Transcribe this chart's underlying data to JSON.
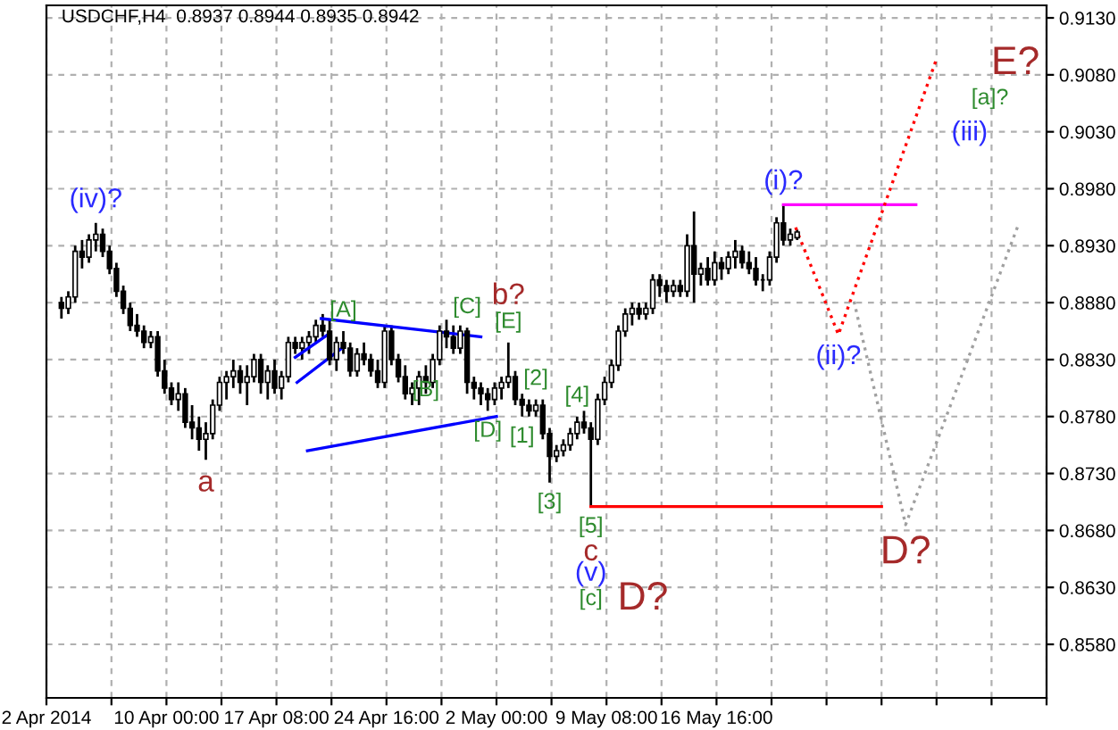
{
  "chart_data": {
    "type": "candlestick",
    "title": "USDCHF,H4  0.8937 0.8944 0.8935 0.8942",
    "color": "#000000",
    "x": [
      "2014-04-03T00:00",
      "2014-04-03T11:00",
      "2014-04-03T22:00",
      "2014-04-04T09:00",
      "2014-04-04T20:00",
      "2014-04-05T07:00",
      "2014-04-05T18:00",
      "2014-04-06T05:00",
      "2014-04-06T16:00",
      "2014-04-07T03:00",
      "2014-04-07T14:00",
      "2014-04-08T01:00",
      "2014-04-08T12:00",
      "2014-04-08T23:00",
      "2014-04-09T10:00",
      "2014-04-09T21:00",
      "2014-04-10T08:00",
      "2014-04-10T19:00",
      "2014-04-11T06:00",
      "2014-04-11T17:00",
      "2014-04-12T04:00",
      "2014-04-12T15:00",
      "2014-04-13T02:00",
      "2014-04-13T13:00",
      "2014-04-14T00:00",
      "2014-04-14T11:00",
      "2014-04-14T22:00",
      "2014-04-15T09:00",
      "2014-04-15T20:00",
      "2014-04-16T07:00",
      "2014-04-16T18:00",
      "2014-04-17T05:00",
      "2014-04-17T16:00",
      "2014-04-18T03:00",
      "2014-04-18T14:00",
      "2014-04-19T01:00",
      "2014-04-19T12:00",
      "2014-04-19T23:00",
      "2014-04-20T10:00",
      "2014-04-20T21:00",
      "2014-04-21T08:00",
      "2014-04-21T19:00",
      "2014-04-22T06:00",
      "2014-04-22T17:00",
      "2014-04-23T04:00",
      "2014-04-23T15:00",
      "2014-04-24T02:00",
      "2014-04-24T13:00",
      "2014-04-25T00:00",
      "2014-04-25T11:00",
      "2014-04-25T22:00",
      "2014-04-26T09:00",
      "2014-04-26T20:00",
      "2014-04-27T07:00",
      "2014-04-27T18:00",
      "2014-04-28T05:00",
      "2014-04-28T16:00",
      "2014-04-29T03:00",
      "2014-04-29T14:00",
      "2014-04-30T01:00",
      "2014-04-30T12:00",
      "2014-04-30T23:00",
      "2014-05-01T10:00",
      "2014-05-01T21:00",
      "2014-05-02T08:00",
      "2014-05-02T19:00",
      "2014-05-03T06:00",
      "2014-05-03T17:00",
      "2014-05-04T04:00",
      "2014-05-04T15:00",
      "2014-05-05T02:00",
      "2014-05-05T13:00",
      "2014-05-06T00:00",
      "2014-05-06T11:00",
      "2014-05-06T22:00",
      "2014-05-07T09:00",
      "2014-05-07T20:00",
      "2014-05-08T07:00",
      "2014-05-08T18:00",
      "2014-05-09T05:00",
      "2014-05-09T16:00",
      "2014-05-10T03:00",
      "2014-05-10T14:00",
      "2014-05-11T01:00",
      "2014-05-11T12:00",
      "2014-05-11T23:00",
      "2014-05-12T10:00",
      "2014-05-12T21:00",
      "2014-05-13T08:00",
      "2014-05-13T19:00",
      "2014-05-14T06:00",
      "2014-05-14T17:00",
      "2014-05-15T04:00",
      "2014-05-15T15:00",
      "2014-05-16T02:00",
      "2014-05-16T13:00",
      "2014-05-17T00:00",
      "2014-05-17T11:00",
      "2014-05-17T22:00",
      "2014-05-18T09:00",
      "2014-05-18T20:00",
      "2014-05-19T07:00",
      "2014-05-19T18:00",
      "2014-05-20T05:00",
      "2014-05-20T16:00",
      "2014-05-21T03:00",
      "2014-05-21T14:00",
      "2014-05-22T01:00"
    ],
    "ohlc": [
      [
        0.888,
        0.8885,
        0.8866,
        0.8875
      ],
      [
        0.8875,
        0.889,
        0.887,
        0.8885
      ],
      [
        0.8885,
        0.893,
        0.888,
        0.8925
      ],
      [
        0.8925,
        0.8935,
        0.891,
        0.892
      ],
      [
        0.892,
        0.894,
        0.8915,
        0.8935
      ],
      [
        0.8935,
        0.895,
        0.8925,
        0.894
      ],
      [
        0.894,
        0.8945,
        0.892,
        0.8925
      ],
      [
        0.8925,
        0.893,
        0.8905,
        0.891
      ],
      [
        0.891,
        0.8915,
        0.8885,
        0.889
      ],
      [
        0.889,
        0.8895,
        0.887,
        0.8875
      ],
      [
        0.8875,
        0.888,
        0.8855,
        0.886
      ],
      [
        0.886,
        0.887,
        0.885,
        0.8855
      ],
      [
        0.8855,
        0.886,
        0.884,
        0.8845
      ],
      [
        0.8845,
        0.8855,
        0.884,
        0.885
      ],
      [
        0.885,
        0.8855,
        0.8815,
        0.882
      ],
      [
        0.882,
        0.883,
        0.88,
        0.8805
      ],
      [
        0.8805,
        0.881,
        0.879,
        0.8795
      ],
      [
        0.8795,
        0.881,
        0.8785,
        0.88
      ],
      [
        0.88,
        0.8805,
        0.877,
        0.8775
      ],
      [
        0.8775,
        0.879,
        0.876,
        0.877
      ],
      [
        0.877,
        0.878,
        0.875,
        0.876
      ],
      [
        0.876,
        0.8775,
        0.8742,
        0.8765
      ],
      [
        0.8765,
        0.8795,
        0.876,
        0.879
      ],
      [
        0.879,
        0.8815,
        0.8785,
        0.881
      ],
      [
        0.881,
        0.882,
        0.8795,
        0.8815
      ],
      [
        0.8815,
        0.883,
        0.8805,
        0.882
      ],
      [
        0.882,
        0.8825,
        0.88,
        0.881
      ],
      [
        0.881,
        0.8825,
        0.879,
        0.8815
      ],
      [
        0.8815,
        0.8835,
        0.881,
        0.883
      ],
      [
        0.883,
        0.8835,
        0.88,
        0.881
      ],
      [
        0.881,
        0.8825,
        0.8795,
        0.882
      ],
      [
        0.882,
        0.883,
        0.88,
        0.8805
      ],
      [
        0.8805,
        0.882,
        0.8795,
        0.8815
      ],
      [
        0.8815,
        0.885,
        0.881,
        0.8845
      ],
      [
        0.8845,
        0.885,
        0.8835,
        0.884
      ],
      [
        0.884,
        0.885,
        0.883,
        0.8845
      ],
      [
        0.8845,
        0.8855,
        0.8835,
        0.885
      ],
      [
        0.885,
        0.8865,
        0.8845,
        0.886
      ],
      [
        0.886,
        0.887,
        0.885,
        0.8855
      ],
      [
        0.8855,
        0.8865,
        0.8825,
        0.883
      ],
      [
        0.883,
        0.885,
        0.882,
        0.8845
      ],
      [
        0.8845,
        0.8855,
        0.8835,
        0.884
      ],
      [
        0.884,
        0.8845,
        0.8815,
        0.882
      ],
      [
        0.882,
        0.884,
        0.8815,
        0.8835
      ],
      [
        0.8835,
        0.8845,
        0.8825,
        0.883
      ],
      [
        0.883,
        0.8835,
        0.8815,
        0.882
      ],
      [
        0.882,
        0.883,
        0.8805,
        0.881
      ],
      [
        0.881,
        0.886,
        0.8805,
        0.8855
      ],
      [
        0.8855,
        0.886,
        0.8825,
        0.883
      ],
      [
        0.883,
        0.8835,
        0.881,
        0.8815
      ],
      [
        0.8815,
        0.8825,
        0.8795,
        0.88
      ],
      [
        0.88,
        0.881,
        0.879,
        0.8805
      ],
      [
        0.8805,
        0.882,
        0.879,
        0.8815
      ],
      [
        0.8815,
        0.8825,
        0.88,
        0.881
      ],
      [
        0.881,
        0.8835,
        0.8805,
        0.883
      ],
      [
        0.883,
        0.886,
        0.8825,
        0.8855
      ],
      [
        0.8855,
        0.8865,
        0.884,
        0.885
      ],
      [
        0.885,
        0.886,
        0.8835,
        0.884
      ],
      [
        0.884,
        0.886,
        0.8835,
        0.8855
      ],
      [
        0.8855,
        0.8858,
        0.88,
        0.881
      ],
      [
        0.881,
        0.8815,
        0.8795,
        0.8805
      ],
      [
        0.8805,
        0.881,
        0.879,
        0.88
      ],
      [
        0.88,
        0.8805,
        0.8785,
        0.8795
      ],
      [
        0.8795,
        0.881,
        0.879,
        0.8805
      ],
      [
        0.8805,
        0.8815,
        0.8795,
        0.881
      ],
      [
        0.881,
        0.8845,
        0.8805,
        0.8815
      ],
      [
        0.8815,
        0.882,
        0.879,
        0.8795
      ],
      [
        0.8795,
        0.88,
        0.878,
        0.879
      ],
      [
        0.879,
        0.8795,
        0.878,
        0.8785
      ],
      [
        0.8785,
        0.8795,
        0.878,
        0.879
      ],
      [
        0.879,
        0.8795,
        0.876,
        0.8765
      ],
      [
        0.8765,
        0.877,
        0.8722,
        0.8745
      ],
      [
        0.8745,
        0.8755,
        0.874,
        0.875
      ],
      [
        0.875,
        0.876,
        0.8745,
        0.8755
      ],
      [
        0.8755,
        0.877,
        0.875,
        0.8765
      ],
      [
        0.8765,
        0.878,
        0.876,
        0.8775
      ],
      [
        0.8775,
        0.8785,
        0.8765,
        0.877
      ],
      [
        0.877,
        0.8775,
        0.8701,
        0.876
      ],
      [
        0.876,
        0.88,
        0.8755,
        0.8795
      ],
      [
        0.8795,
        0.8815,
        0.879,
        0.881
      ],
      [
        0.881,
        0.883,
        0.8805,
        0.8825
      ],
      [
        0.8825,
        0.886,
        0.882,
        0.8855
      ],
      [
        0.8855,
        0.8875,
        0.885,
        0.887
      ],
      [
        0.887,
        0.888,
        0.886,
        0.8875
      ],
      [
        0.8875,
        0.888,
        0.8865,
        0.887
      ],
      [
        0.887,
        0.888,
        0.8865,
        0.8875
      ],
      [
        0.8875,
        0.8905,
        0.887,
        0.89
      ],
      [
        0.89,
        0.8905,
        0.8885,
        0.8895
      ],
      [
        0.8895,
        0.89,
        0.888,
        0.889
      ],
      [
        0.889,
        0.89,
        0.8885,
        0.8895
      ],
      [
        0.8895,
        0.89,
        0.8885,
        0.889
      ],
      [
        0.889,
        0.894,
        0.8885,
        0.893
      ],
      [
        0.893,
        0.896,
        0.888,
        0.8905
      ],
      [
        0.8905,
        0.8915,
        0.8895,
        0.891
      ],
      [
        0.891,
        0.892,
        0.8895,
        0.89
      ],
      [
        0.89,
        0.8925,
        0.8895,
        0.8915
      ],
      [
        0.8915,
        0.892,
        0.89,
        0.891
      ],
      [
        0.891,
        0.8925,
        0.8905,
        0.892
      ],
      [
        0.892,
        0.8935,
        0.891,
        0.8925
      ],
      [
        0.8925,
        0.893,
        0.891,
        0.8915
      ],
      [
        0.8915,
        0.8925,
        0.8905,
        0.891
      ],
      [
        0.891,
        0.892,
        0.8895,
        0.89
      ],
      [
        0.89,
        0.8905,
        0.889,
        0.89
      ],
      [
        0.89,
        0.8925,
        0.8895,
        0.892
      ],
      [
        0.892,
        0.8955,
        0.8915,
        0.895
      ],
      [
        0.895,
        0.8966,
        0.893,
        0.8935
      ],
      [
        0.8935,
        0.8945,
        0.893,
        0.894
      ],
      [
        0.8937,
        0.8944,
        0.8935,
        0.8942
      ]
    ],
    "series": [
      {
        "type": "line",
        "color": "#ff0000",
        "line_style": "solid",
        "x": [
          "2014-05-08T07:00",
          "2014-05-27T16:00"
        ],
        "values": [
          0.8701,
          0.8701
        ]
      },
      {
        "type": "line",
        "color": "#ff00ff",
        "line_style": "solid",
        "x": [
          "2014-05-21T03:00",
          "2014-05-29T23:00"
        ],
        "values": [
          0.8966,
          0.8966
        ]
      },
      {
        "type": "line",
        "color": "#ff0000",
        "line_style": "dotted",
        "x": [
          "2014-05-21T22:30",
          "2014-05-24T19:00",
          "2014-05-31T08:00"
        ],
        "values": [
          0.8946,
          0.8852,
          0.9094
        ]
      },
      {
        "type": "line",
        "color": "#a0a0a0",
        "line_style": "dotted",
        "x": [
          "2014-05-25T20:00",
          "2014-05-29T06:30",
          "2014-06-05T20:00"
        ],
        "values": [
          0.8881,
          0.8685,
          0.895
        ]
      },
      {
        "type": "line",
        "color": "#0000ff",
        "line_style": "solid",
        "x": [
          "2014-04-20T07:30",
          "2014-04-30T23:00"
        ],
        "values": [
          0.8866,
          0.885
        ]
      },
      {
        "type": "line",
        "color": "#0000ff",
        "line_style": "solid",
        "x": [
          "2014-04-19T09:30",
          "2014-05-02T00:00"
        ],
        "values": [
          0.875,
          0.878
        ]
      },
      {
        "type": "line",
        "color": "#0000ff",
        "line_style": "solid",
        "x": [
          "2014-04-18T17:00",
          "2014-04-21T19:00"
        ],
        "values": [
          0.881,
          0.8841
        ]
      },
      {
        "type": "line",
        "color": "#0000ff",
        "line_style": "solid",
        "x": [
          "2014-04-18T14:00",
          "2014-04-20T21:00"
        ],
        "values": [
          0.8832,
          0.8853
        ]
      }
    ],
    "xlim": [
      "2014-04-02T00:00",
      "2014-06-07T16:00"
    ],
    "ylim": [
      0.8533,
      0.9141
    ],
    "xticks": [
      {
        "value": "2014-04-02T00:00",
        "label": "2 Apr 2014"
      },
      {
        "value": "2014-04-06T08:00",
        "label": null
      },
      {
        "value": "2014-04-10T00:00",
        "label": "10 Apr 00:00"
      },
      {
        "value": "2014-04-13T16:00",
        "label": null
      },
      {
        "value": "2014-04-17T08:00",
        "label": "17 Apr 08:00"
      },
      {
        "value": "2014-04-21T00:00",
        "label": null
      },
      {
        "value": "2014-04-24T16:00",
        "label": "24 Apr 16:00"
      },
      {
        "value": "2014-04-28T08:00",
        "label": null
      },
      {
        "value": "2014-05-02T00:00",
        "label": "2 May 00:00"
      },
      {
        "value": "2014-05-05T16:00",
        "label": null
      },
      {
        "value": "2014-05-09T08:00",
        "label": "9 May 08:00"
      },
      {
        "value": "2014-05-13T00:00",
        "label": null
      },
      {
        "value": "2014-05-16T16:00",
        "label": "16 May 16:00"
      },
      {
        "value": "2014-05-20T08:00",
        "label": null
      },
      {
        "value": "2014-05-24T00:00",
        "label": null
      },
      {
        "value": "2014-05-27T16:00",
        "label": null
      },
      {
        "value": "2014-05-31T08:00",
        "label": null
      },
      {
        "value": "2014-06-04T00:00",
        "label": null
      },
      {
        "value": "2014-06-07T16:00",
        "label": null
      }
    ],
    "yticks": [
      {
        "value": 0.858,
        "label": "0.8580"
      },
      {
        "value": 0.863,
        "label": "0.8630"
      },
      {
        "value": 0.868,
        "label": "0.8680"
      },
      {
        "value": 0.873,
        "label": "0.8730"
      },
      {
        "value": 0.878,
        "label": "0.8780"
      },
      {
        "value": 0.883,
        "label": "0.8830"
      },
      {
        "value": 0.888,
        "label": "0.8880"
      },
      {
        "value": 0.893,
        "label": "0.8930"
      },
      {
        "value": 0.898,
        "label": "0.8980"
      },
      {
        "value": 0.903,
        "label": "0.9030"
      },
      {
        "value": 0.908,
        "label": "0.9080"
      },
      {
        "value": 0.913,
        "label": "0.9130"
      }
    ],
    "grid": true,
    "annotations": [
      {
        "text": "(iv)?",
        "x": "2014-04-05T07:00",
        "y": 0.895
      },
      {
        "text": "a",
        "x": "2014-04-12T15:00",
        "y": 0.8742
      },
      {
        "text": "[A]",
        "x": "2014-04-21T19:00",
        "y": 0.8855
      },
      {
        "text": "[B]",
        "x": "2014-04-27T07:00",
        "y": 0.8785
      },
      {
        "text": "[C]",
        "x": "2014-04-30T01:00",
        "y": 0.8858
      },
      {
        "text": "[D]",
        "x": "2014-05-01T10:00",
        "y": 0.8785
      },
      {
        "text": "[E]",
        "x": "2014-05-02T19:00",
        "y": 0.8845
      },
      {
        "text": "b?",
        "x": "2014-05-02T19:00",
        "y": 0.8845
      },
      {
        "text": "[1]",
        "x": "2014-05-03T17:00",
        "y": 0.878
      },
      {
        "text": "[2]",
        "x": "2014-05-04T15:00",
        "y": 0.8795
      },
      {
        "text": "[3]",
        "x": "2014-05-05T13:00",
        "y": 0.8722
      },
      {
        "text": "[4]",
        "x": "2014-05-07T09:00",
        "y": 0.878
      },
      {
        "text": "[5]",
        "x": "2014-05-08T07:00",
        "y": 0.8701
      },
      {
        "text": "c",
        "x": "2014-05-08T07:00",
        "y": 0.8701
      },
      {
        "text": "(v)",
        "x": "2014-05-08T07:00",
        "y": 0.8701
      },
      "[c]",
      "D?",
      {
        "text": "(i)?",
        "x": "2014-05-21T03:00",
        "y": 0.8966
      },
      {
        "text": "(ii)?",
        "x": "2014-05-24T19:00",
        "y": 0.8852
      },
      {
        "text": "(iii)",
        "x": "2014-05-31T08:00",
        "y": 0.9094
      },
      {
        "text": "[a]?",
        "x": "2014-05-31T08:00",
        "y": 0.9094
      },
      {
        "text": "E?",
        "x": "2014-05-31T08:00",
        "y": 0.9094
      },
      {
        "text": "D?",
        "x": "2014-05-29T06:30",
        "y": 0.8685
      }
    ]
  }
}
